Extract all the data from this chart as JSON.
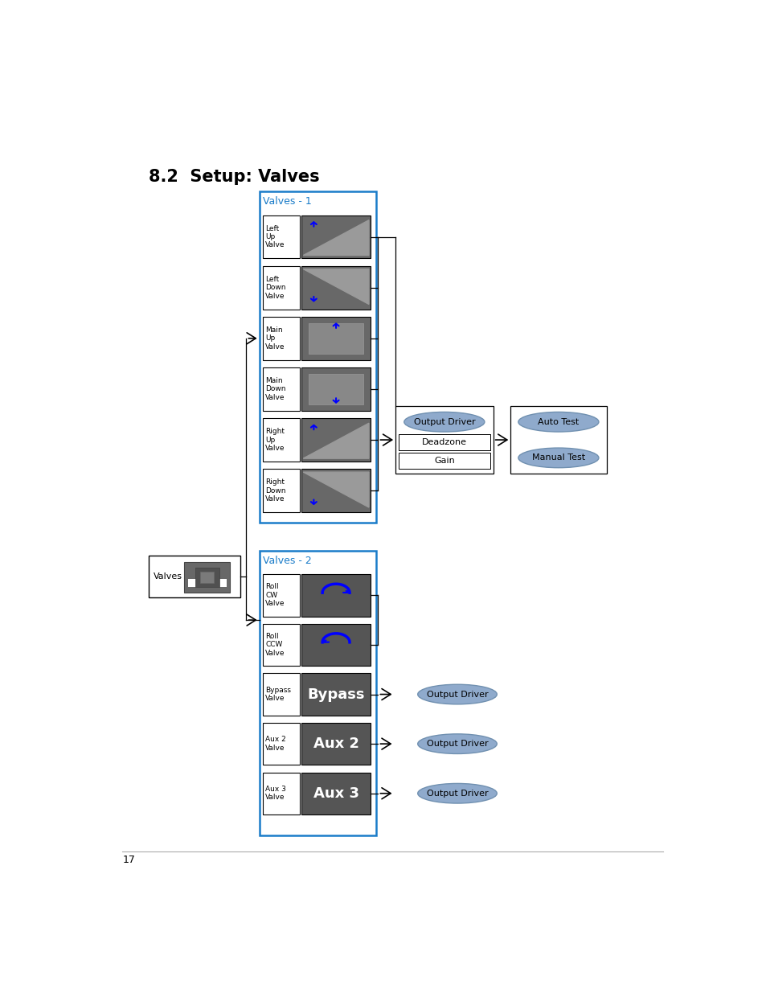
{
  "title": "8.2  Setup: Valves",
  "title_fontsize": 15,
  "background_color": "#ffffff",
  "page_number": "17",
  "valves1_label": "Valves - 1",
  "valves2_label": "Valves - 2",
  "output_driver_color": "#8faacc",
  "box_border_color": "#1a7cc9",
  "dark_gray": "#666666",
  "darker_gray": "#555555",
  "med_gray": "#888888"
}
